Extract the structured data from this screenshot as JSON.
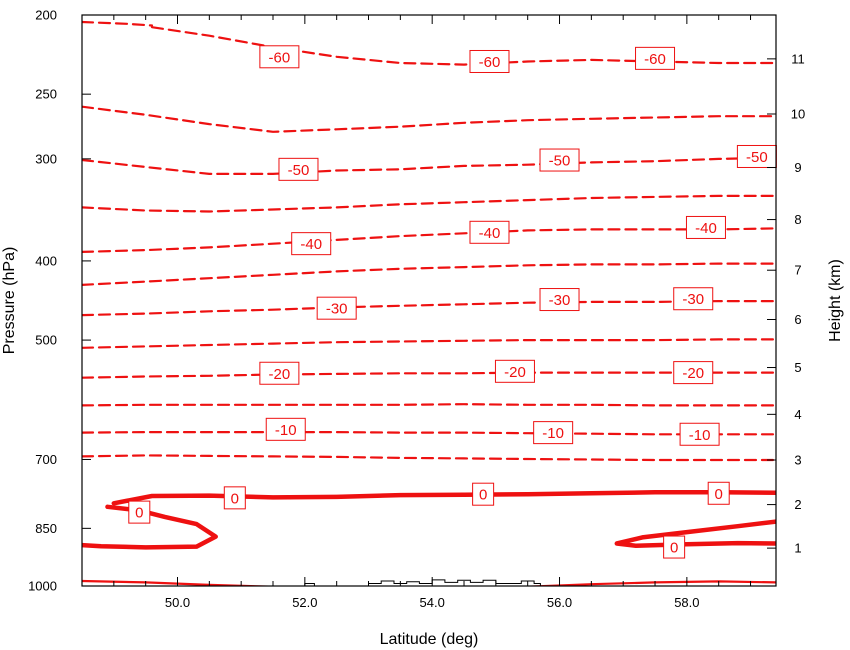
{
  "chart_data": {
    "type": "contour",
    "title": "",
    "xlabel": "Latitude (deg)",
    "ylabel": "Pressure (hPa)",
    "y2label": "Height (km)",
    "xlim": [
      48.5,
      59.4
    ],
    "ylim": [
      1000,
      200
    ],
    "y_scale": "log",
    "xticks": [
      "50.0",
      "52.0",
      "54.0",
      "56.0",
      "58.0"
    ],
    "yticks": [
      200,
      250,
      300,
      400,
      500,
      700,
      850,
      1000
    ],
    "y2ticks": [
      1,
      2,
      3,
      4,
      5,
      6,
      7,
      8,
      9,
      10,
      11
    ],
    "grid": false,
    "contour_color": "#ee1111",
    "contour_levels": [
      -65,
      -60,
      -55,
      -50,
      -45,
      -40,
      -35,
      -30,
      -25,
      -20,
      -15,
      -10,
      -5,
      0,
      5
    ],
    "contours": [
      {
        "level": -65,
        "dashed": true,
        "points": [
          [
            48.5,
            204
          ],
          [
            49.2,
            205
          ],
          [
            49.6,
            206
          ]
        ]
      },
      {
        "level": -60,
        "dashed": true,
        "points": [
          [
            49.6,
            207
          ],
          [
            50.5,
            212
          ],
          [
            51.5,
            219
          ],
          [
            52.5,
            225
          ],
          [
            53.5,
            229
          ],
          [
            54.5,
            230
          ],
          [
            55.5,
            228
          ],
          [
            56.5,
            227
          ],
          [
            57.5,
            228
          ],
          [
            58.5,
            229
          ],
          [
            59.4,
            229
          ]
        ]
      },
      {
        "level": -55,
        "dashed": true,
        "points": [
          [
            48.5,
            259
          ],
          [
            49.5,
            265
          ],
          [
            50.5,
            272
          ],
          [
            51.5,
            278
          ],
          [
            52.5,
            276
          ],
          [
            53.5,
            274
          ],
          [
            54.5,
            271
          ],
          [
            55.5,
            269
          ],
          [
            56.5,
            268
          ],
          [
            57.5,
            267
          ],
          [
            58.5,
            266
          ],
          [
            59.4,
            266
          ]
        ]
      },
      {
        "level": -50,
        "dashed": true,
        "points": [
          [
            48.5,
            301
          ],
          [
            49.5,
            307
          ],
          [
            50.5,
            313
          ],
          [
            51.5,
            313
          ],
          [
            52.5,
            310
          ],
          [
            53.5,
            309
          ],
          [
            54.5,
            306
          ],
          [
            55.5,
            305
          ],
          [
            56.5,
            303
          ],
          [
            57.5,
            302
          ],
          [
            58.5,
            300
          ],
          [
            59.4,
            299
          ]
        ]
      },
      {
        "level": -45,
        "dashed": true,
        "points": [
          [
            48.5,
            344
          ],
          [
            49.5,
            347
          ],
          [
            50.5,
            348
          ],
          [
            51.5,
            346
          ],
          [
            52.5,
            344
          ],
          [
            53.5,
            341
          ],
          [
            54.5,
            339
          ],
          [
            55.5,
            337
          ],
          [
            56.5,
            335
          ],
          [
            57.5,
            334
          ],
          [
            58.5,
            333
          ],
          [
            59.4,
            333
          ]
        ]
      },
      {
        "level": -40,
        "dashed": true,
        "points": [
          [
            48.5,
            390
          ],
          [
            49.5,
            388
          ],
          [
            50.5,
            385
          ],
          [
            51.5,
            381
          ],
          [
            52.5,
            377
          ],
          [
            53.5,
            373
          ],
          [
            54.5,
            370
          ],
          [
            55.5,
            367
          ],
          [
            56.5,
            366
          ],
          [
            57.5,
            366
          ],
          [
            58.5,
            366
          ],
          [
            59.4,
            365
          ]
        ]
      },
      {
        "level": -35,
        "dashed": true,
        "points": [
          [
            48.5,
            428
          ],
          [
            49.5,
            424
          ],
          [
            50.5,
            420
          ],
          [
            51.5,
            416
          ],
          [
            52.5,
            412
          ],
          [
            53.5,
            409
          ],
          [
            54.5,
            407
          ],
          [
            55.5,
            405
          ],
          [
            56.5,
            404
          ],
          [
            57.5,
            404
          ],
          [
            58.5,
            403
          ],
          [
            59.4,
            403
          ]
        ]
      },
      {
        "level": -30,
        "dashed": true,
        "points": [
          [
            48.5,
            466
          ],
          [
            49.5,
            464
          ],
          [
            50.5,
            461
          ],
          [
            51.5,
            459
          ],
          [
            52.5,
            456
          ],
          [
            53.5,
            454
          ],
          [
            54.5,
            452
          ],
          [
            55.5,
            450
          ],
          [
            56.5,
            449
          ],
          [
            57.5,
            449
          ],
          [
            58.5,
            448
          ],
          [
            59.4,
            448
          ]
        ]
      },
      {
        "level": -25,
        "dashed": true,
        "points": [
          [
            48.5,
            511
          ],
          [
            49.5,
            509
          ],
          [
            50.5,
            507
          ],
          [
            51.5,
            505
          ],
          [
            52.5,
            503
          ],
          [
            53.5,
            502
          ],
          [
            54.5,
            501
          ],
          [
            55.5,
            500
          ],
          [
            56.5,
            500
          ],
          [
            57.5,
            500
          ],
          [
            58.5,
            499
          ],
          [
            59.4,
            499
          ]
        ]
      },
      {
        "level": -20,
        "dashed": true,
        "points": [
          [
            48.5,
            556
          ],
          [
            49.5,
            554
          ],
          [
            50.5,
            553
          ],
          [
            51.5,
            551
          ],
          [
            52.5,
            550
          ],
          [
            53.5,
            549
          ],
          [
            54.5,
            549
          ],
          [
            55.5,
            548
          ],
          [
            56.5,
            548
          ],
          [
            57.5,
            548
          ],
          [
            58.5,
            548
          ],
          [
            59.4,
            548
          ]
        ]
      },
      {
        "level": -15,
        "dashed": true,
        "points": [
          [
            48.5,
            601
          ],
          [
            49.5,
            600
          ],
          [
            50.5,
            600
          ],
          [
            51.5,
            600
          ],
          [
            52.5,
            600
          ],
          [
            53.5,
            600
          ],
          [
            54.5,
            599
          ],
          [
            55.5,
            600
          ],
          [
            56.5,
            600
          ],
          [
            57.5,
            601
          ],
          [
            58.5,
            601
          ],
          [
            59.4,
            601
          ]
        ]
      },
      {
        "level": -10,
        "dashed": true,
        "points": [
          [
            48.5,
            649
          ],
          [
            49.5,
            648
          ],
          [
            50.5,
            648
          ],
          [
            51.5,
            648
          ],
          [
            52.5,
            648
          ],
          [
            53.5,
            649
          ],
          [
            54.5,
            649
          ],
          [
            55.5,
            650
          ],
          [
            56.5,
            651
          ],
          [
            57.5,
            652
          ],
          [
            58.5,
            652
          ],
          [
            59.4,
            652
          ]
        ]
      },
      {
        "level": -5,
        "dashed": true,
        "points": [
          [
            48.5,
            694
          ],
          [
            49.5,
            692
          ],
          [
            50.5,
            693
          ],
          [
            51.5,
            694
          ],
          [
            52.5,
            695
          ],
          [
            53.5,
            697
          ],
          [
            54.5,
            698
          ],
          [
            55.5,
            699
          ],
          [
            56.5,
            700
          ],
          [
            57.5,
            701
          ],
          [
            58.5,
            701
          ],
          [
            59.4,
            701
          ]
        ]
      },
      {
        "level": 0,
        "dashed": false,
        "points": [
          [
            49.0,
            792
          ],
          [
            49.6,
            776
          ],
          [
            50.5,
            775
          ],
          [
            51.5,
            779
          ],
          [
            52.5,
            778
          ],
          [
            53.5,
            774
          ],
          [
            54.5,
            773
          ],
          [
            55.5,
            772
          ],
          [
            56.5,
            770
          ],
          [
            57.5,
            768
          ],
          [
            58.5,
            768
          ],
          [
            59.4,
            769
          ]
        ]
      },
      {
        "level": 0,
        "dashed": false,
        "points": [
          [
            48.9,
            800
          ],
          [
            49.4,
            808
          ],
          [
            49.8,
            823
          ],
          [
            50.3,
            840
          ],
          [
            50.6,
            870
          ],
          [
            50.3,
            895
          ],
          [
            49.5,
            897
          ],
          [
            48.8,
            894
          ],
          [
            48.5,
            891
          ]
        ]
      },
      {
        "level": 0,
        "dashed": false,
        "points": [
          [
            59.4,
            834
          ],
          [
            58.8,
            845
          ],
          [
            58.0,
            859
          ],
          [
            57.3,
            872
          ],
          [
            56.9,
            887
          ],
          [
            57.2,
            893
          ],
          [
            58.0,
            889
          ],
          [
            58.8,
            886
          ],
          [
            59.4,
            887
          ]
        ]
      },
      {
        "level": 5,
        "dashed": false,
        "points": [
          [
            48.5,
            986
          ],
          [
            49.5,
            990
          ],
          [
            50.5,
            997
          ],
          [
            51.5,
            1002
          ],
          [
            52.5,
            1002
          ],
          [
            53.5,
            1002
          ],
          [
            54.5,
            1002
          ],
          [
            55.5,
            1002
          ],
          [
            56.5,
            995
          ],
          [
            57.5,
            990
          ],
          [
            58.5,
            987
          ],
          [
            59.4,
            990
          ]
        ]
      }
    ],
    "contour_labels": [
      {
        "text": "-60",
        "lat": 51.6,
        "p": 225
      },
      {
        "text": "-60",
        "lat": 54.9,
        "p": 228
      },
      {
        "text": "-60",
        "lat": 57.5,
        "p": 226
      },
      {
        "text": "-50",
        "lat": 51.9,
        "p": 309
      },
      {
        "text": "-50",
        "lat": 56.0,
        "p": 301
      },
      {
        "text": "-50",
        "lat": 59.1,
        "p": 298
      },
      {
        "text": "-40",
        "lat": 52.1,
        "p": 381
      },
      {
        "text": "-40",
        "lat": 54.9,
        "p": 369
      },
      {
        "text": "-40",
        "lat": 58.3,
        "p": 364
      },
      {
        "text": "-30",
        "lat": 52.5,
        "p": 457
      },
      {
        "text": "-30",
        "lat": 56.0,
        "p": 446
      },
      {
        "text": "-30",
        "lat": 58.1,
        "p": 445
      },
      {
        "text": "-20",
        "lat": 51.6,
        "p": 549
      },
      {
        "text": "-20",
        "lat": 55.3,
        "p": 546
      },
      {
        "text": "-20",
        "lat": 58.1,
        "p": 548
      },
      {
        "text": "-10",
        "lat": 51.7,
        "p": 643
      },
      {
        "text": "-10",
        "lat": 55.9,
        "p": 649
      },
      {
        "text": "-10",
        "lat": 58.2,
        "p": 652
      },
      {
        "text": "0",
        "lat": 50.9,
        "p": 780
      },
      {
        "text": "0",
        "lat": 54.8,
        "p": 772
      },
      {
        "text": "0",
        "lat": 58.5,
        "p": 770
      },
      {
        "text": "0",
        "lat": 49.4,
        "p": 812
      },
      {
        "text": "0",
        "lat": 57.8,
        "p": 896
      }
    ],
    "terrain": {
      "color": "#000000",
      "points": [
        [
          52.0,
          1000
        ],
        [
          52.0,
          993
        ],
        [
          52.15,
          993
        ],
        [
          52.15,
          1000
        ],
        [
          53.0,
          1000
        ],
        [
          53.0,
          993
        ],
        [
          53.2,
          993
        ],
        [
          53.2,
          986
        ],
        [
          53.4,
          986
        ],
        [
          53.4,
          993
        ],
        [
          53.6,
          993
        ],
        [
          53.6,
          988
        ],
        [
          53.8,
          988
        ],
        [
          53.8,
          993
        ],
        [
          54.0,
          993
        ],
        [
          54.0,
          983
        ],
        [
          54.2,
          983
        ],
        [
          54.2,
          990
        ],
        [
          54.4,
          990
        ],
        [
          54.4,
          984
        ],
        [
          54.6,
          984
        ],
        [
          54.6,
          990
        ],
        [
          54.8,
          990
        ],
        [
          54.8,
          984
        ],
        [
          55.0,
          984
        ],
        [
          55.0,
          993
        ],
        [
          55.4,
          993
        ],
        [
          55.4,
          986
        ],
        [
          55.6,
          986
        ],
        [
          55.6,
          993
        ],
        [
          55.7,
          993
        ],
        [
          55.7,
          1000
        ]
      ]
    }
  }
}
